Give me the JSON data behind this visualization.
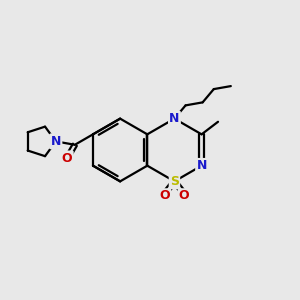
{
  "bg_color": "#e8e8e8",
  "bond_color": "#000000",
  "N_color": "#1a1acc",
  "O_color": "#cc0000",
  "S_color": "#bbbb00",
  "line_width": 1.6,
  "font_size_atom": 9,
  "fig_size": [
    3.0,
    3.0
  ],
  "dpi": 100,
  "xlim": [
    0,
    10
  ],
  "ylim": [
    0,
    10
  ]
}
